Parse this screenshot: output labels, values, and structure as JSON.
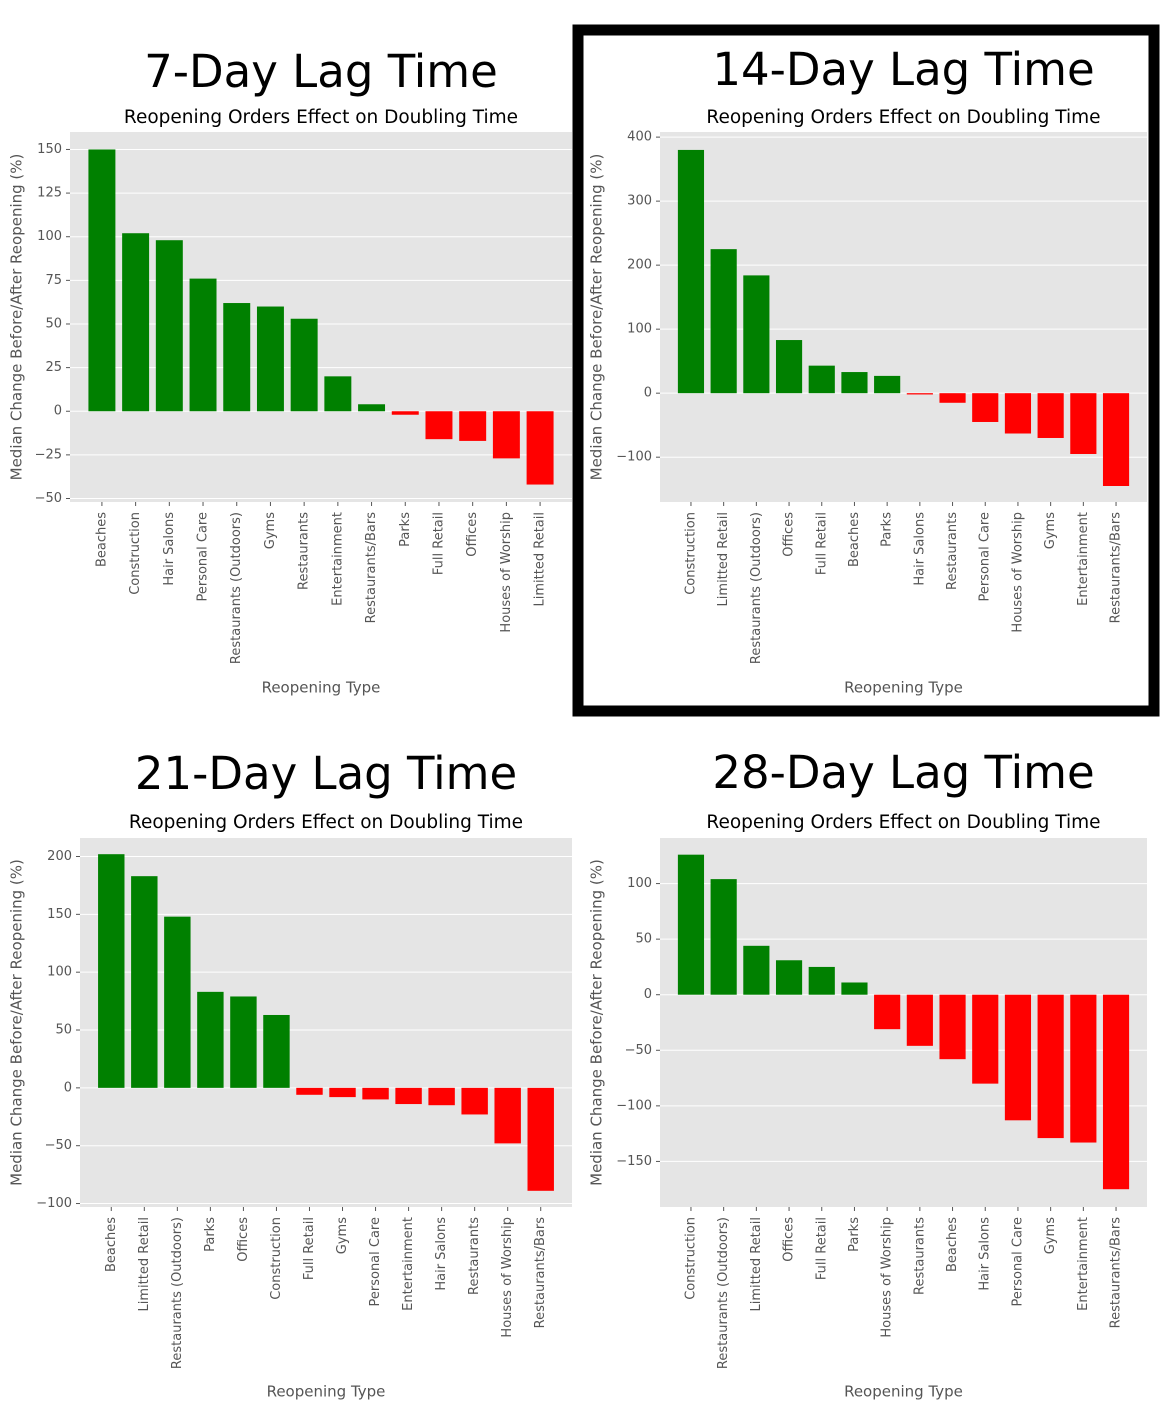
{
  "chart_data": [
    {
      "type": "bar",
      "panel_title": "7-Day Lag Time",
      "title": "Reopening Orders Effect on Doubling Time",
      "xlabel": "Reopening Type",
      "ylabel": "Median Change Before/After Reopening (%)",
      "categories": [
        "Beaches",
        "Construction",
        "Hair Salons",
        "Personal Care",
        "Restaurants (Outdoors)",
        "Gyms",
        "Restaurants",
        "Entertainment",
        "Restaurants/Bars",
        "Parks",
        "Full Retail",
        "Offices",
        "Houses of Worship",
        "Limitted Retail"
      ],
      "values": [
        150,
        102,
        98,
        76,
        62,
        60,
        53,
        20,
        4,
        -2,
        -16,
        -17,
        -27,
        -42
      ],
      "color_positive": "#008000",
      "color_negative": "#ff0000",
      "ylim": [
        -52,
        160
      ],
      "yticks": [
        {
          "value": -50,
          "label": "−50"
        },
        {
          "value": -25,
          "label": "−25"
        },
        0,
        25,
        50,
        75,
        100,
        125,
        150
      ],
      "grid": true,
      "highlighted": false
    },
    {
      "type": "bar",
      "panel_title": "14-Day Lag Time",
      "title": "Reopening Orders Effect on Doubling Time",
      "xlabel": "Reopening Type",
      "ylabel": "Median Change Before/After Reopening (%)",
      "categories": [
        "Construction",
        "Limitted Retail",
        "Restaurants (Outdoors)",
        "Offices",
        "Full Retail",
        "Beaches",
        "Parks",
        "Hair Salons",
        "Restaurants",
        "Personal Care",
        "Houses of Worship",
        "Gyms",
        "Entertainment",
        "Restaurants/Bars"
      ],
      "values": [
        380,
        225,
        184,
        83,
        43,
        33,
        27,
        -2,
        -15,
        -45,
        -63,
        -70,
        -95,
        -145
      ],
      "color_positive": "#008000",
      "color_negative": "#ff0000",
      "ylim": [
        -170,
        408
      ],
      "yticks": [
        {
          "value": -100,
          "label": "−100"
        },
        0,
        100,
        200,
        300,
        400
      ],
      "grid": true,
      "highlighted": true
    },
    {
      "type": "bar",
      "panel_title": "21-Day Lag Time",
      "title": "Reopening Orders Effect on Doubling Time",
      "xlabel": "Reopening Type",
      "ylabel": "Median Change Before/After Reopening (%)",
      "categories": [
        "Beaches",
        "Limitted Retail",
        "Restaurants (Outdoors)",
        "Parks",
        "Offices",
        "Construction",
        "Full Retail",
        "Gyms",
        "Personal Care",
        "Entertainment",
        "Hair Salons",
        "Restaurants",
        "Houses of Worship",
        "Restaurants/Bars"
      ],
      "values": [
        202,
        183,
        148,
        83,
        79,
        63,
        -6,
        -8,
        -10,
        -14,
        -15,
        -23,
        -48,
        -89
      ],
      "color_positive": "#008000",
      "color_negative": "#ff0000",
      "ylim": [
        -103,
        216
      ],
      "yticks": [
        {
          "value": -100,
          "label": "−100"
        },
        {
          "value": -50,
          "label": "−50"
        },
        0,
        50,
        100,
        150,
        200
      ],
      "grid": true,
      "highlighted": false
    },
    {
      "type": "bar",
      "panel_title": "28-Day Lag Time",
      "title": "Reopening Orders Effect on Doubling Time",
      "xlabel": "Reopening Type",
      "ylabel": "Median Change Before/After Reopening (%)",
      "categories": [
        "Construction",
        "Restaurants (Outdoors)",
        "Limitted Retail",
        "Offices",
        "Full Retail",
        "Parks",
        "Houses of Worship",
        "Restaurants",
        "Beaches",
        "Hair Salons",
        "Personal Care",
        "Gyms",
        "Entertainment",
        "Restaurants/Bars"
      ],
      "values": [
        126,
        104,
        44,
        31,
        25,
        11,
        -31,
        -46,
        -58,
        -80,
        -113,
        -129,
        -133,
        -175
      ],
      "color_positive": "#008000",
      "color_negative": "#ff0000",
      "ylim": [
        -191,
        141
      ],
      "yticks": [
        {
          "value": -150,
          "label": "−150"
        },
        {
          "value": -100,
          "label": "−100"
        },
        {
          "value": -50,
          "label": "−50"
        },
        0,
        50,
        100
      ],
      "grid": true,
      "highlighted": false
    }
  ]
}
